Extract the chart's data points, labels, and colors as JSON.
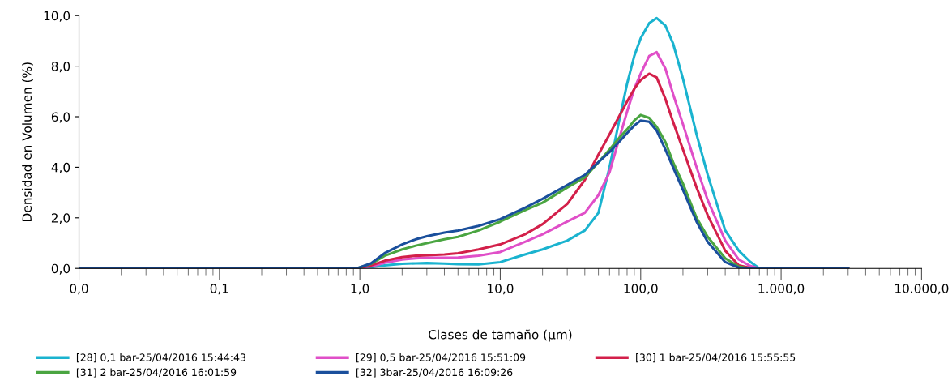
{
  "chart_data": {
    "type": "line",
    "xlabel": "Clases de tamaño (µm)",
    "ylabel": "Densidad en Volumen (%)",
    "log": "x",
    "grid": false,
    "legend": "bottom",
    "marker": "none",
    "line_style": "solid",
    "x": [
      0.01,
      0.95,
      1.2,
      1.5,
      2,
      2.5,
      3,
      4,
      5,
      7,
      10,
      15,
      20,
      30,
      40,
      50,
      60,
      70,
      80,
      90,
      100,
      115,
      130,
      150,
      170,
      200,
      250,
      300,
      400,
      500,
      600,
      700,
      3000
    ],
    "xlim": [
      0.01,
      10000
    ],
    "xticks": [
      {
        "value": 0.01,
        "label": "0,0"
      },
      {
        "value": 0.1,
        "label": "0,1"
      },
      {
        "value": 1,
        "label": "1,0"
      },
      {
        "value": 10,
        "label": "10,0"
      },
      {
        "value": 100,
        "label": "100,0"
      },
      {
        "value": 1000,
        "label": "1.000,0"
      },
      {
        "value": 10000,
        "label": "10.000,0"
      }
    ],
    "ylim": [
      0,
      10
    ],
    "yticks": [
      {
        "value": 0,
        "label": "0,0"
      },
      {
        "value": 2,
        "label": "2,0"
      },
      {
        "value": 4,
        "label": "4,0"
      },
      {
        "value": 6,
        "label": "6,0"
      },
      {
        "value": 8,
        "label": "8,0"
      },
      {
        "value": 10,
        "label": "10,0"
      }
    ],
    "series": [
      {
        "name": "[28] 0,1 bar-25/04/2016 15:44:43",
        "color": "#1ab3cf",
        "values": [
          0,
          0,
          0.05,
          0.12,
          0.18,
          0.2,
          0.21,
          0.19,
          0.17,
          0.16,
          0.25,
          0.55,
          0.75,
          1.1,
          1.5,
          2.2,
          4.0,
          5.8,
          7.3,
          8.4,
          9.1,
          9.7,
          9.9,
          9.6,
          8.9,
          7.5,
          5.3,
          3.7,
          1.5,
          0.7,
          0.27,
          0,
          0
        ]
      },
      {
        "name": "[29] 0,5 bar-25/04/2016 15:51:09",
        "color": "#e04fc8",
        "values": [
          0,
          0,
          0.08,
          0.22,
          0.35,
          0.4,
          0.42,
          0.42,
          0.43,
          0.5,
          0.65,
          1.05,
          1.35,
          1.85,
          2.2,
          2.9,
          3.8,
          5.1,
          6.2,
          7.1,
          7.7,
          8.4,
          8.55,
          7.9,
          6.9,
          5.7,
          4.0,
          2.7,
          1.1,
          0.35,
          0.1,
          0,
          0
        ]
      },
      {
        "name": "[30] 1 bar-25/04/2016 15:55:55",
        "color": "#d3204a",
        "values": [
          0,
          0,
          0.12,
          0.3,
          0.45,
          0.5,
          0.52,
          0.55,
          0.6,
          0.75,
          0.95,
          1.35,
          1.75,
          2.55,
          3.5,
          4.5,
          5.3,
          6.0,
          6.6,
          7.1,
          7.45,
          7.7,
          7.55,
          6.7,
          5.8,
          4.7,
          3.2,
          2.1,
          0.7,
          0.12,
          0.02,
          0,
          0
        ]
      },
      {
        "name": "[31] 2 bar-25/04/2016 16:01:59",
        "color": "#4aa541",
        "values": [
          0,
          0,
          0.18,
          0.5,
          0.75,
          0.9,
          1.0,
          1.15,
          1.25,
          1.5,
          1.85,
          2.3,
          2.6,
          3.2,
          3.6,
          4.2,
          4.7,
          5.15,
          5.5,
          5.85,
          6.07,
          5.95,
          5.6,
          5.0,
          4.2,
          3.35,
          2.0,
          1.25,
          0.4,
          0.07,
          0,
          0,
          0
        ]
      },
      {
        "name": "[32] 3bar-25/04/2016 16:09:26",
        "color": "#1a4f9c",
        "values": [
          0,
          0,
          0.2,
          0.6,
          0.95,
          1.15,
          1.27,
          1.42,
          1.5,
          1.68,
          1.95,
          2.4,
          2.75,
          3.3,
          3.7,
          4.2,
          4.6,
          5.0,
          5.35,
          5.65,
          5.85,
          5.8,
          5.45,
          4.7,
          4.0,
          3.1,
          1.85,
          1.05,
          0.25,
          0.03,
          0,
          0,
          0
        ]
      }
    ]
  }
}
